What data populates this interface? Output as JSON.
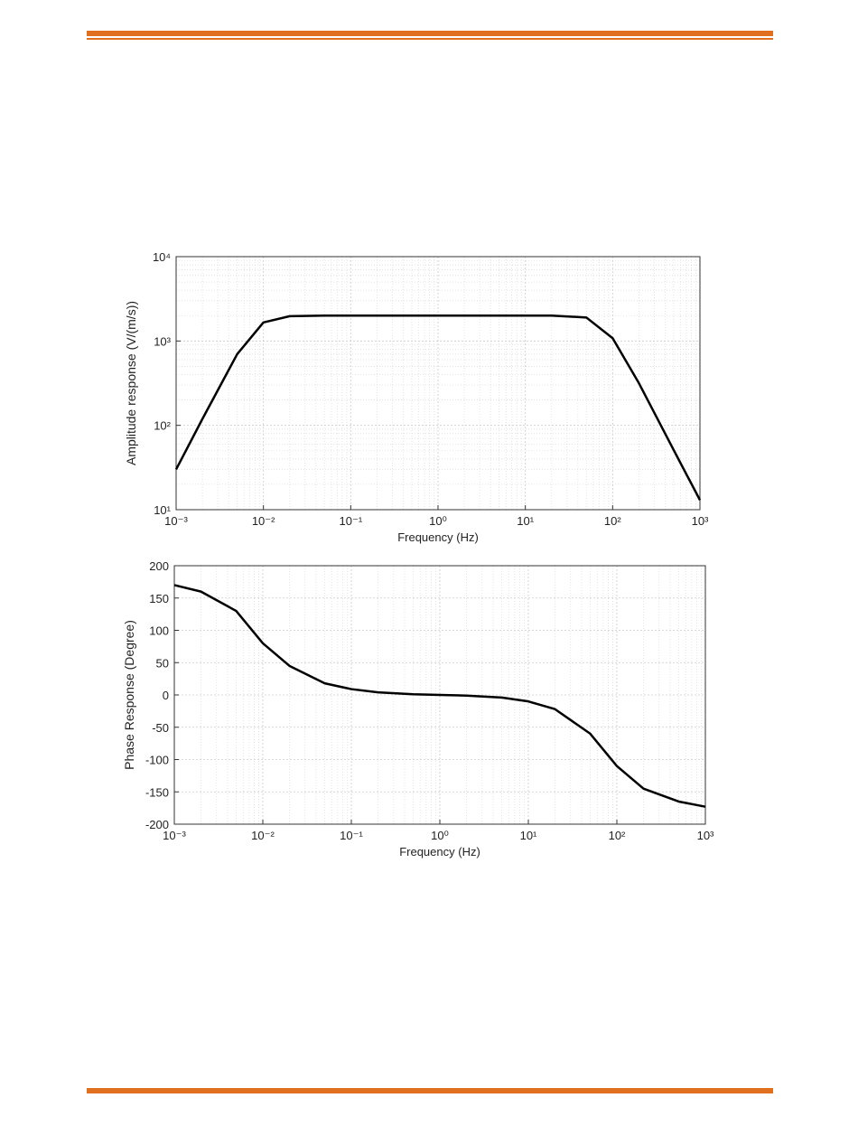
{
  "chart_data": [
    {
      "type": "line",
      "x_label": "Frequency (Hz)",
      "y_label": "Amplitude response (V/(m/s))",
      "x": [
        0.001,
        0.002,
        0.005,
        0.01,
        0.02,
        0.05,
        0.1,
        0.2,
        0.5,
        1,
        2,
        5,
        10,
        20,
        50,
        100,
        200,
        500,
        1000
      ],
      "series": [
        {
          "color": "#000000",
          "values": [
            30,
            119,
            697,
            1660,
            1970,
            2000,
            2000,
            2000,
            2000,
            2000,
            2000,
            2000,
            2000,
            2000,
            1900,
            1080,
            316,
            51,
            13
          ]
        }
      ],
      "xscale": "log",
      "yscale": "log",
      "xlim": [
        0.001,
        1000
      ],
      "ylim": [
        10,
        10000
      ],
      "xticks": [
        {
          "value": 0.001,
          "label": "10⁻³"
        },
        {
          "value": 0.01,
          "label": "10⁻²"
        },
        {
          "value": 0.1,
          "label": "10⁻¹"
        },
        {
          "value": 1,
          "label": "10⁰"
        },
        {
          "value": 10,
          "label": "10¹"
        },
        {
          "value": 100,
          "label": "10²"
        },
        {
          "value": 1000,
          "label": "10³"
        }
      ],
      "yticks": [
        {
          "value": 10,
          "label": "10¹"
        },
        {
          "value": 100,
          "label": "10²"
        },
        {
          "value": 1000,
          "label": "10³"
        },
        {
          "value": 10000,
          "label": "10⁴"
        }
      ],
      "grid": true
    },
    {
      "type": "line",
      "x_label": "Frequency (Hz)",
      "y_label": "Phase Response (Degree)",
      "x": [
        0.001,
        0.002,
        0.005,
        0.01,
        0.02,
        0.05,
        0.1,
        0.2,
        0.5,
        1,
        2,
        5,
        10,
        20,
        50,
        100,
        200,
        500,
        1000
      ],
      "series": [
        {
          "color": "#000000",
          "values": [
            170,
            160,
            130,
            80,
            45,
            18,
            9,
            4,
            1,
            0,
            -1,
            -4,
            -10,
            -22,
            -60,
            -110,
            -145,
            -165,
            -173
          ]
        }
      ],
      "xscale": "log",
      "yscale": "linear",
      "xlim": [
        0.001,
        1000
      ],
      "ylim": [
        -200,
        200
      ],
      "xticks": [
        {
          "value": 0.001,
          "label": "10⁻³"
        },
        {
          "value": 0.01,
          "label": "10⁻²"
        },
        {
          "value": 0.1,
          "label": "10⁻¹"
        },
        {
          "value": 1,
          "label": "10⁰"
        },
        {
          "value": 10,
          "label": "10¹"
        },
        {
          "value": 100,
          "label": "10²"
        },
        {
          "value": 1000,
          "label": "10³"
        }
      ],
      "yticks": [
        -200,
        -150,
        -100,
        -50,
        0,
        50,
        100,
        150,
        200
      ],
      "grid": true
    }
  ]
}
